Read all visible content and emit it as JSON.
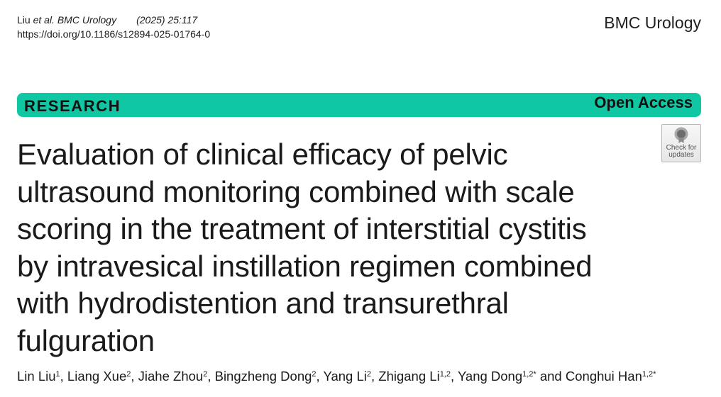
{
  "citation": {
    "authors_short": "Liu",
    "et_al": "et al.",
    "journal": "BMC Urology",
    "year_volume": "(2025) 25:117",
    "doi": "https://doi.org/10.1186/s12894-025-01764-0"
  },
  "journal_name": "BMC Urology",
  "article_type": "RESEARCH",
  "access": "Open Access",
  "update_badge": {
    "icon": "check-for-updates-icon",
    "line1": "Check for",
    "line2": "updates"
  },
  "title_lines": [
    "Evaluation of clinical efficacy of pelvic",
    "ultrasound monitoring combined with scale",
    "scoring in the treatment of interstitial cystitis",
    "by intravesical instillation regimen combined",
    "with hydrodistention and transurethral",
    "fulguration"
  ],
  "authors": [
    {
      "name": "Lin Liu",
      "aff": "1",
      "sep": ", "
    },
    {
      "name": "Liang Xue",
      "aff": "2",
      "sep": ", "
    },
    {
      "name": "Jiahe Zhou",
      "aff": "2",
      "sep": ", "
    },
    {
      "name": "Bingzheng Dong",
      "aff": "2",
      "sep": ", "
    },
    {
      "name": "Yang Li",
      "aff": "2",
      "sep": ", "
    },
    {
      "name": "Zhigang Li",
      "aff": "1,2",
      "sep": ", "
    },
    {
      "name": "Yang Dong",
      "aff": "1,2*",
      "sep": " and "
    },
    {
      "name": "Conghui Han",
      "aff": "1,2*",
      "sep": ""
    }
  ],
  "colors": {
    "accent_bar": "#0fc8a3",
    "text": "#1a1a1a"
  }
}
